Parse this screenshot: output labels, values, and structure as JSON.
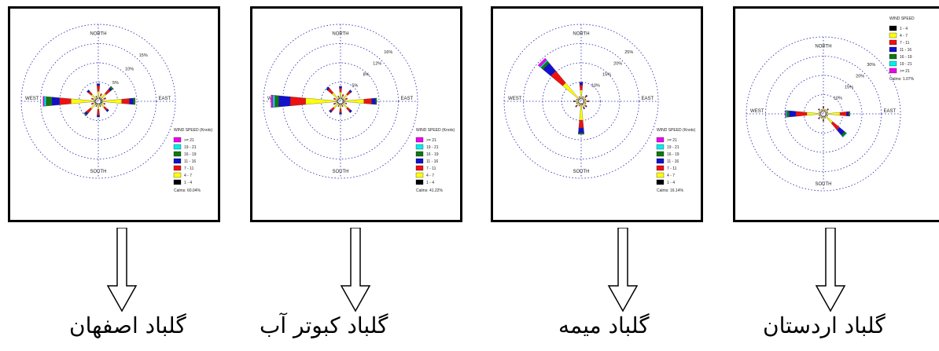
{
  "colors": {
    "speed_bins": [
      "#000000",
      "#ffff00",
      "#ee1111",
      "#1111cc",
      "#117711",
      "#00eeee",
      "#ee00ee"
    ],
    "grid": "#2222aa",
    "frame": "#000000"
  },
  "directions": [
    "N",
    "NNE",
    "NE",
    "ENE",
    "E",
    "ESE",
    "SE",
    "SSE",
    "S",
    "SSW",
    "SW",
    "WSW",
    "W",
    "WNW",
    "NW",
    "NNW"
  ],
  "speed_bins_desc": [
    "1 - 4",
    "4 - 7",
    "7 - 11",
    "11 - 16",
    "16 - 19",
    "19 - 21",
    ">= 21"
  ],
  "chart_data": [
    {
      "type": "windrose",
      "compass": {
        "north": "NORTH",
        "south": "SOUTH",
        "east": "EAST",
        "west": "WEST"
      },
      "ring_labels": [
        "5%",
        "10%",
        "15%"
      ],
      "ring_max": 20,
      "legend": {
        "title": "WIND SPEED (Knots)",
        "entries": [
          ">= 21",
          "19 - 21",
          "16 - 19",
          "11 - 16",
          "7 - 11",
          "4 - 7",
          "1 - 4"
        ],
        "calms": "Calms: 60.04%"
      },
      "series": [
        {
          "values": [
            0,
            0.5,
            0.5,
            0.5,
            0.5,
            0.5,
            0.5,
            0.3,
            0,
            0.3,
            0.5,
            0.3,
            0.5,
            0.3,
            0.3,
            0.3
          ]
        },
        {
          "values": [
            2,
            0.5,
            1.5,
            0.5,
            5,
            0.5,
            1,
            0.3,
            1.5,
            0.3,
            1.5,
            0.5,
            6,
            0.5,
            1.5,
            0.3
          ]
        },
        {
          "values": [
            1.5,
            0.5,
            1.5,
            0.5,
            2,
            0.3,
            1,
            0.3,
            1.5,
            0.3,
            1.5,
            0.5,
            3,
            0.5,
            1,
            0.3
          ]
        },
        {
          "values": [
            0.5,
            0,
            0.5,
            0,
            1,
            0,
            0.5,
            0,
            0.5,
            0,
            0.5,
            0,
            2,
            0,
            0.5,
            0
          ]
        },
        {
          "values": [
            0,
            0,
            0.5,
            0,
            0.5,
            0,
            0,
            0,
            0,
            0,
            0.3,
            0,
            1.5,
            0,
            0,
            0
          ]
        },
        {
          "values": [
            0,
            0,
            0,
            0,
            0,
            0,
            0,
            0,
            0,
            0,
            0,
            0,
            0.5,
            0,
            0,
            0
          ]
        },
        {
          "values": [
            0,
            0,
            0,
            0,
            0,
            0,
            0,
            0,
            0,
            0,
            0,
            0,
            0.3,
            0,
            0,
            0
          ]
        }
      ]
    },
    {
      "type": "windrose",
      "compass": {
        "north": "NORTH",
        "south": "SOUTH",
        "east": "EAST",
        "west": "WEST"
      },
      "ring_labels": [
        "5%",
        "8%",
        "12%",
        "16%"
      ],
      "ring_max": 20,
      "legend": {
        "title": "WIND SPEED (Knots)",
        "entries": [
          ">= 21",
          "19 - 21",
          "16 - 19",
          "11 - 16",
          "7 - 11",
          "4 - 7",
          "1 - 4"
        ],
        "calms": "Calms: 41.22%"
      },
      "series": [
        {
          "values": [
            0.3,
            0.3,
            0.3,
            0.3,
            0.5,
            0.3,
            0.3,
            0.3,
            0.3,
            0.3,
            0.3,
            0.3,
            0.5,
            0.3,
            0.3,
            0.3
          ]
        },
        {
          "values": [
            1.5,
            0.5,
            1.5,
            0.5,
            5,
            0.5,
            1.5,
            0.3,
            1,
            0.3,
            1.5,
            0.5,
            8,
            0.5,
            2,
            0.3
          ]
        },
        {
          "values": [
            1,
            0.5,
            1,
            0.5,
            2,
            0.3,
            1,
            0.3,
            1,
            0.3,
            1,
            0.5,
            4,
            0.5,
            1.5,
            0.3
          ]
        },
        {
          "values": [
            0.5,
            0,
            0.5,
            0,
            1,
            0,
            0.5,
            0,
            0.5,
            0,
            0.5,
            0,
            3,
            0,
            0.5,
            0
          ]
        },
        {
          "values": [
            0,
            0,
            0,
            0,
            0.3,
            0,
            0,
            0,
            0,
            0,
            0,
            0,
            1,
            0,
            0,
            0
          ]
        },
        {
          "values": [
            0,
            0,
            0,
            0,
            0,
            0,
            0,
            0,
            0,
            0,
            0,
            0,
            0.5,
            0,
            0,
            0
          ]
        },
        {
          "values": [
            0,
            0,
            0,
            0,
            0,
            0,
            0,
            0,
            0,
            0,
            0,
            0,
            0.5,
            0,
            0,
            0
          ]
        }
      ]
    },
    {
      "type": "windrose",
      "compass": {
        "north": "NORTH",
        "south": "SOUTH",
        "east": "EAST",
        "west": "WEST"
      },
      "ring_labels": [
        "10%",
        "15%",
        "20%",
        "25%"
      ],
      "ring_max": 30,
      "legend": {
        "title": "WIND SPEED (Knots)",
        "entries": [
          ">= 21",
          "19 - 21",
          "16 - 19",
          "11 - 16",
          "7 - 11",
          "4 - 7",
          "1 - 4"
        ],
        "calms": "Calms: 16.14%"
      },
      "series": [
        {
          "values": [
            0.5,
            0.3,
            0.3,
            0.3,
            0.3,
            0.3,
            0.3,
            0.5,
            0.5,
            0.3,
            0.3,
            0.3,
            0.3,
            0.3,
            0.5,
            0.3
          ]
        },
        {
          "values": [
            3,
            0.5,
            1,
            0.5,
            1,
            0.5,
            1,
            1,
            6,
            0.5,
            1,
            0.5,
            1,
            0.5,
            8,
            0.5
          ]
        },
        {
          "values": [
            2,
            0.3,
            0.5,
            0.3,
            0.5,
            0.3,
            0.5,
            0.5,
            3,
            0.3,
            0.5,
            0.3,
            0.5,
            0.3,
            6,
            0.3
          ]
        },
        {
          "values": [
            1,
            0,
            0.5,
            0,
            0.3,
            0,
            0.3,
            0.3,
            2,
            0,
            0.3,
            0,
            0.3,
            0,
            4,
            0
          ]
        },
        {
          "values": [
            0,
            0,
            0,
            0,
            0,
            0,
            0,
            0,
            0.5,
            0,
            0,
            0,
            0,
            0,
            1,
            0
          ]
        },
        {
          "values": [
            0,
            0,
            0,
            0,
            0,
            0,
            0,
            0,
            0,
            0,
            0,
            0,
            0,
            0,
            0.5,
            0
          ]
        },
        {
          "values": [
            0,
            0,
            0,
            0,
            0,
            0,
            0,
            0,
            0,
            0,
            0,
            0,
            0,
            0,
            1,
            0
          ]
        }
      ]
    },
    {
      "type": "windrose",
      "compass": {
        "north": "NORTH",
        "south": "SOUTH",
        "east": "EAST",
        "west": "WEST"
      },
      "ring_labels": [
        "10%",
        "15%",
        "20%",
        "30%"
      ],
      "ring_max": 35,
      "legend": {
        "title": "WIND SPEED",
        "entries": [
          "1 - 4",
          "4 - 7",
          "7 - 11",
          "11 - 16",
          "16 - 19",
          "19 - 21",
          ">= 21"
        ],
        "calms": "Calms: 1.07%"
      },
      "series": [
        {
          "values": [
            0.5,
            0.3,
            0.3,
            0.3,
            0.5,
            0.3,
            0.5,
            0.3,
            0.5,
            0.3,
            0.3,
            0.3,
            0.5,
            0.3,
            0.3,
            0.3
          ]
        },
        {
          "values": [
            1,
            0.5,
            1,
            0.5,
            6,
            0.5,
            4,
            0.5,
            1,
            0.5,
            1,
            0.5,
            6,
            0.5,
            1,
            0.5
          ]
        },
        {
          "values": [
            0.5,
            0.3,
            0.5,
            0.3,
            3,
            0.3,
            4,
            0.3,
            0.5,
            0.3,
            0.5,
            0.3,
            5,
            0.3,
            0.5,
            0.3
          ]
        },
        {
          "values": [
            0.3,
            0,
            0.3,
            0,
            1,
            0,
            3,
            0,
            0.3,
            0,
            0.3,
            0,
            3,
            0,
            0.3,
            0
          ]
        },
        {
          "values": [
            0,
            0,
            0,
            0,
            0.5,
            0,
            1,
            0,
            0,
            0,
            0,
            0,
            1,
            0,
            0,
            0
          ]
        },
        {
          "values": [
            0,
            0,
            0,
            0,
            0,
            0,
            0.3,
            0,
            0,
            0,
            0,
            0,
            0.5,
            0,
            0,
            0
          ]
        },
        {
          "values": [
            0,
            0,
            0,
            0,
            0,
            0,
            0,
            0,
            0,
            0,
            0,
            0,
            0.3,
            0,
            0,
            0
          ]
        }
      ]
    }
  ],
  "captions": [
    "گلباد اصفهان",
    "گلباد کبوتر آب",
    "گلباد میمه",
    "گلباد اردستان"
  ]
}
